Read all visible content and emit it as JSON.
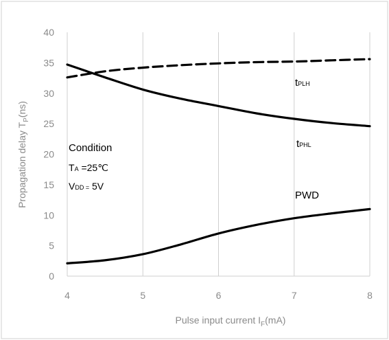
{
  "chart_data": {
    "type": "line",
    "xlabel": "Pulse input current I",
    "xlabel_sub": "F",
    "xlabel_unit": "(mA)",
    "ylabel": "Propagation delay T",
    "ylabel_sub": "P",
    "ylabel_unit": "(ns)",
    "xlim": [
      4,
      8
    ],
    "ylim": [
      0,
      40
    ],
    "x_ticks": [
      "4",
      "5",
      "6",
      "7",
      "8"
    ],
    "y_ticks": [
      "0",
      "5",
      "10",
      "15",
      "20",
      "25",
      "30",
      "35",
      "40"
    ],
    "grid": "vertical",
    "series": [
      {
        "name": "tPLH",
        "style": "dashed",
        "x": [
          4,
          4.5,
          5,
          5.5,
          6,
          6.5,
          7,
          7.5,
          8
        ],
        "y": [
          32.6,
          33.6,
          34.2,
          34.6,
          34.9,
          35.1,
          35.2,
          35.4,
          35.6
        ]
      },
      {
        "name": "tPHL",
        "style": "solid",
        "x": [
          4,
          4.5,
          5,
          5.5,
          6,
          6.5,
          7,
          7.5,
          8
        ],
        "y": [
          34.7,
          32.6,
          30.6,
          29.1,
          27.9,
          26.7,
          25.8,
          25.1,
          24.6
        ]
      },
      {
        "name": "PWD",
        "style": "solid",
        "x": [
          4,
          4.5,
          5,
          5.5,
          6,
          6.5,
          7,
          7.5,
          8
        ],
        "y": [
          2.1,
          2.6,
          3.6,
          5.2,
          7.0,
          8.4,
          9.5,
          10.3,
          11.0
        ]
      }
    ],
    "labels": [
      {
        "main": "t",
        "sub": "PLH"
      },
      {
        "main": "t",
        "sub": "PHL"
      },
      {
        "main": "PWD",
        "sub": ""
      }
    ],
    "condition": {
      "title": "Condition",
      "temp_main": "T",
      "temp_sub": "A",
      "temp_value": " =25℃",
      "vdd_main": "V",
      "vdd_sub": "DD =",
      "vdd_value": " 5V"
    }
  }
}
